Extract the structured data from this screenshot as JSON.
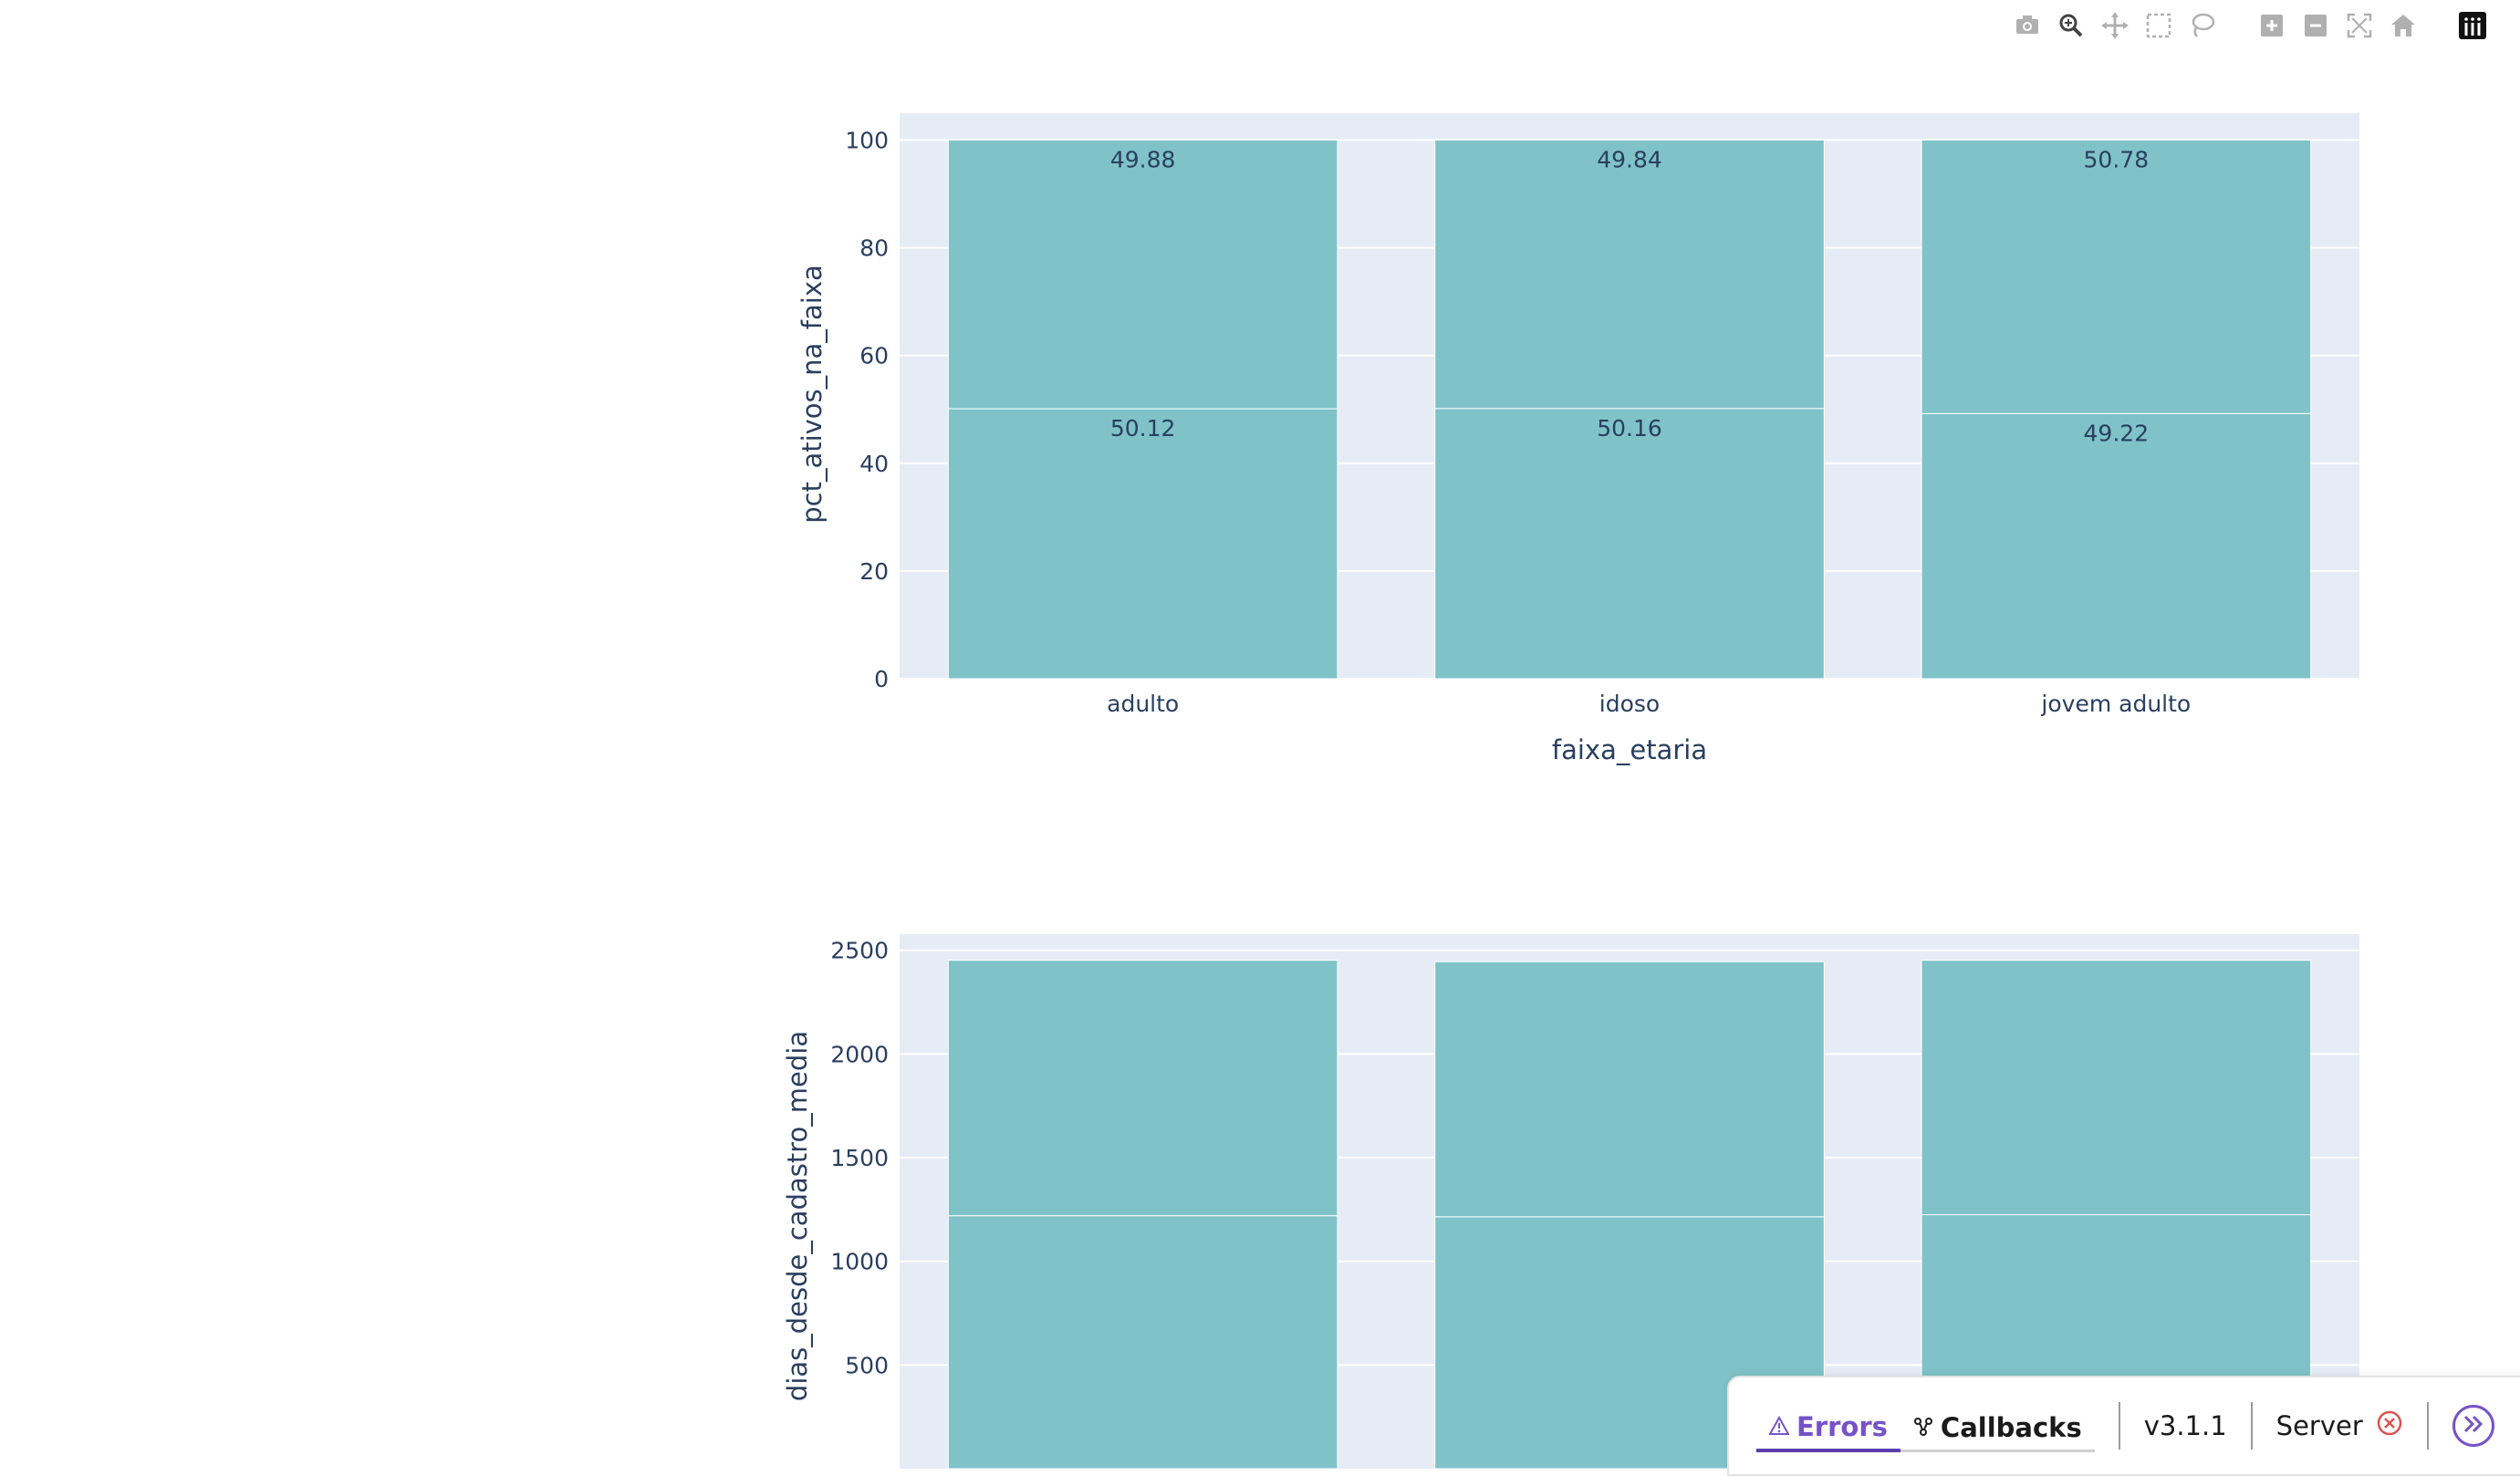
{
  "modebar": {
    "buttons": [
      "camera-icon",
      "zoom-icon",
      "pan-icon",
      "box-select-icon",
      "lasso-icon",
      "zoom-in-icon",
      "zoom-out-icon",
      "autoscale-icon",
      "reset-axes-icon",
      "plotly-logo-icon"
    ]
  },
  "colors": {
    "bar": "#7fc3c8",
    "plot_bg": "#e5ecf6",
    "text": "#2a3f5f",
    "accent": "#7652c9",
    "error": "#d9534f"
  },
  "chart_data": [
    {
      "type": "bar",
      "barmode": "stack",
      "categories": [
        "adulto",
        "idoso",
        "jovem adulto"
      ],
      "series": [
        {
          "values": [
            50.12,
            50.16,
            49.22
          ],
          "text": [
            "50.12",
            "50.16",
            "49.22"
          ]
        },
        {
          "values": [
            49.88,
            49.84,
            50.78
          ],
          "text": [
            "49.88",
            "49.84",
            "50.78"
          ]
        }
      ],
      "xlabel": "faixa_etaria",
      "ylabel": "pct_ativos_na_faixa",
      "ylim": [
        0,
        105
      ],
      "yticks": [
        0,
        20,
        40,
        60,
        80,
        100
      ],
      "ytick_labels": [
        "0",
        "20",
        "40",
        "60",
        "80",
        "100"
      ],
      "grid": true
    },
    {
      "type": "bar",
      "barmode": "stack",
      "categories": [
        "adulto",
        "idoso",
        "jovem adulto"
      ],
      "series": [
        {
          "values": [
            1220,
            1215,
            1225
          ]
        },
        {
          "values": [
            1232,
            1230,
            1227
          ]
        }
      ],
      "ylabel": "dias_desde_cadastro_media",
      "ylim": [
        0,
        2578
      ],
      "yticks": [
        500,
        1000,
        1500,
        2000,
        2500
      ],
      "ytick_labels": [
        "500",
        "1000",
        "1500",
        "2000",
        "2500"
      ],
      "grid": true
    }
  ],
  "devtools": {
    "errors_label": "Errors",
    "callbacks_label": "Callbacks",
    "version": "v3.1.1",
    "server_label": "Server"
  }
}
